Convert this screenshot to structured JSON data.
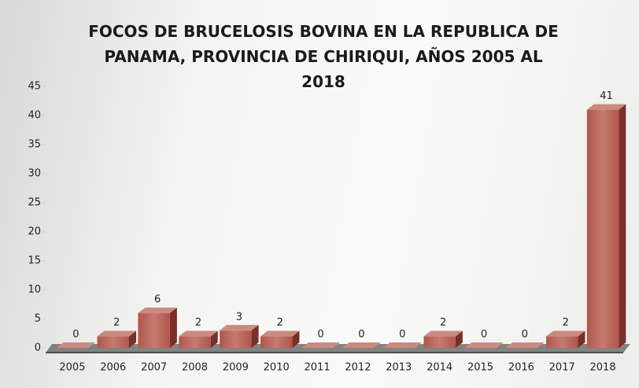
{
  "chart_data": {
    "type": "bar3d",
    "title": "FOCOS DE BRUCELOSIS BOVINA EN LA REPUBLICA DE PANAMA, PROVINCIA DE CHIRIQUI, AÑOS 2005 AL 2018",
    "categories": [
      "2005",
      "2006",
      "2007",
      "2008",
      "2009",
      "2010",
      "2011",
      "2012",
      "2013",
      "2014",
      "2015",
      "2016",
      "2017",
      "2018"
    ],
    "values": [
      0,
      2,
      6,
      2,
      3,
      2,
      0,
      0,
      0,
      2,
      0,
      0,
      2,
      41
    ],
    "color": "#b0564c",
    "ylim": [
      0,
      45
    ],
    "yticks": [
      0,
      5,
      10,
      15,
      20,
      25,
      30,
      35,
      40,
      45
    ],
    "grid": false
  }
}
